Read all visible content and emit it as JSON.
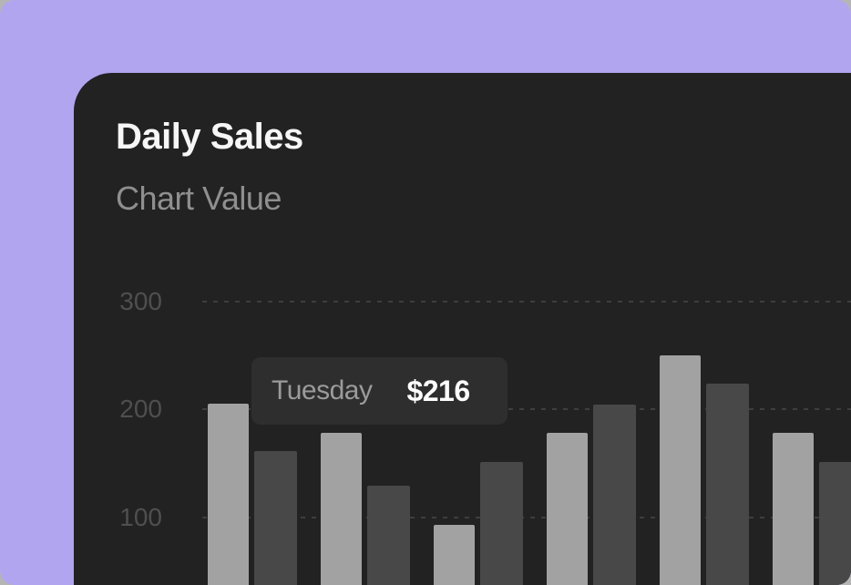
{
  "page": {
    "background_color": "#b5b5b5",
    "panel_color": "#b2a5ef",
    "card_color": "#222222"
  },
  "card": {
    "title": "Daily Sales",
    "subtitle": "Chart Value"
  },
  "tooltip": {
    "label": "Tuesday",
    "value": "$216",
    "background": "#2e2e2e"
  },
  "chart_data": {
    "type": "bar",
    "title": "Daily Sales",
    "subtitle": "Chart Value",
    "series": [
      {
        "name": "light-bars",
        "color": "#a2a2a2",
        "values": [
          205,
          178,
          93,
          178,
          250,
          178
        ]
      },
      {
        "name": "dark-bars",
        "color": "#484848",
        "values": [
          161,
          129,
          151,
          204,
          224,
          151
        ]
      }
    ],
    "yticks": [
      300,
      200,
      100
    ],
    "ylim": [
      0,
      320
    ],
    "grid": "dashed-horizontal",
    "legend": "none",
    "tooltip": {
      "label": "Tuesday",
      "value": "$216"
    }
  }
}
